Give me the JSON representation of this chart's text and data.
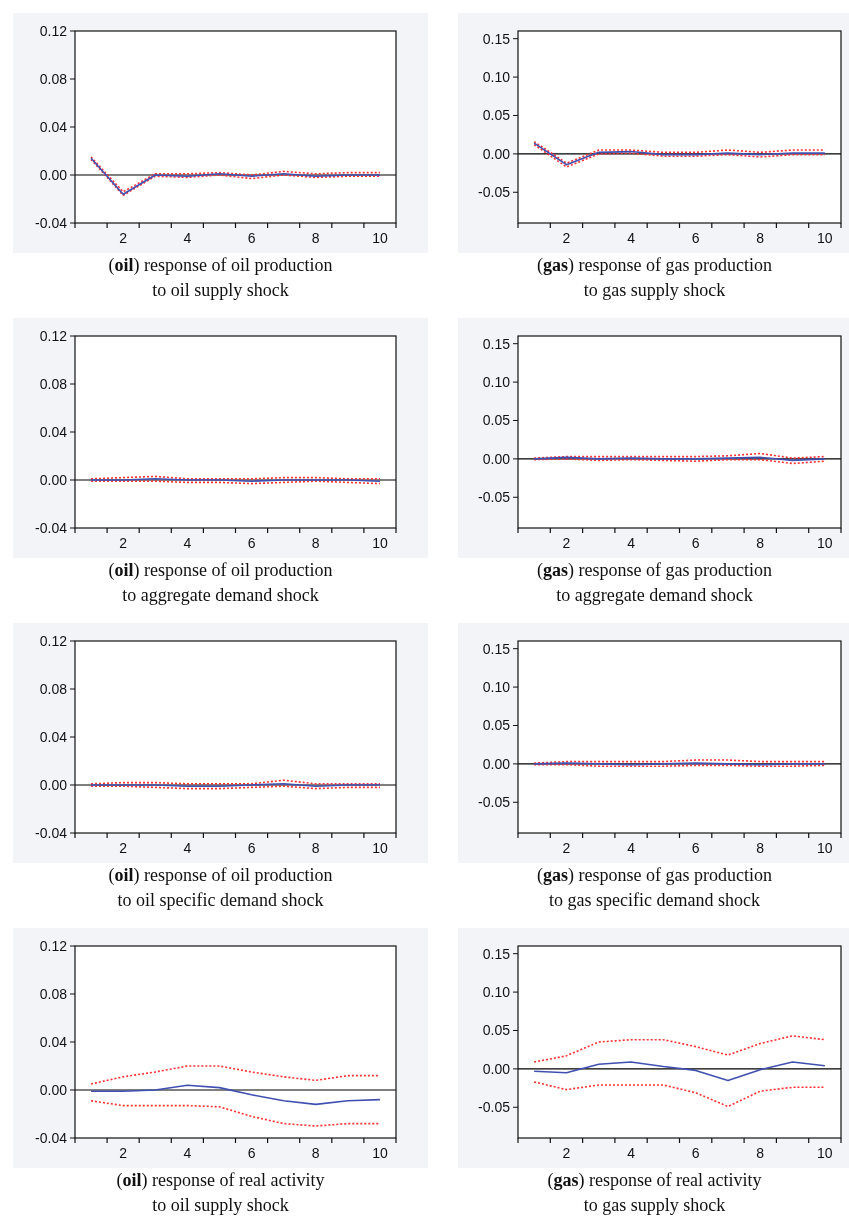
{
  "chart_data": [
    {
      "type": "line",
      "title": "(oil) response of oil production to oil supply shock",
      "x": [
        1,
        2,
        3,
        4,
        5,
        6,
        7,
        8,
        9,
        10
      ],
      "xlim": [
        0.5,
        10.5
      ],
      "xticks": [
        {
          "value": 0.5,
          "label": null
        },
        {
          "value": 1.5,
          "label": null
        },
        {
          "value": 2,
          "label": "2"
        },
        {
          "value": 2.5,
          "label": null
        },
        {
          "value": 3.5,
          "label": null
        },
        {
          "value": 4,
          "label": "4"
        },
        {
          "value": 4.5,
          "label": null
        },
        {
          "value": 5.5,
          "label": null
        },
        {
          "value": 6,
          "label": "6"
        },
        {
          "value": 6.5,
          "label": null
        },
        {
          "value": 7.5,
          "label": null
        },
        {
          "value": 8,
          "label": "8"
        },
        {
          "value": 8.5,
          "label": null
        },
        {
          "value": 9.5,
          "label": null
        },
        {
          "value": 10,
          "label": "10"
        },
        {
          "value": 10.5,
          "label": null
        }
      ],
      "ylim": [
        -0.04,
        0.12
      ],
      "yticks": [
        {
          "value": -0.04,
          "label": "-0.04"
        },
        {
          "value": 0,
          "label": "0.00"
        },
        {
          "value": 0.04,
          "label": "0.04"
        },
        {
          "value": 0.08,
          "label": "0.08"
        },
        {
          "value": 0.12,
          "label": "0.12"
        }
      ],
      "ref_lines": [
        {
          "axis": "y",
          "value": 0,
          "color": "#000000"
        }
      ],
      "series": [
        {
          "color": "#ff3030",
          "line_style": "dotted",
          "values": [
            0.015,
            -0.014,
            0.001,
            0.001,
            0.002,
            0.0,
            0.003,
            0.001,
            0.002,
            0.002
          ]
        },
        {
          "color": "#ff3030",
          "line_style": "dotted",
          "values": [
            0.013,
            -0.017,
            -0.001,
            -0.002,
            0.0,
            -0.003,
            0.0,
            -0.002,
            -0.001,
            -0.001
          ]
        },
        {
          "color": "#4050b0",
          "line_style": "solid",
          "values": [
            0.014,
            -0.016,
            0.0,
            -0.001,
            0.001,
            -0.001,
            0.001,
            -0.001,
            0.0,
            0.0
          ]
        }
      ]
    },
    {
      "type": "line",
      "title": "(gas) response of gas production to gas supply shock",
      "x": [
        1,
        2,
        3,
        4,
        5,
        6,
        7,
        8,
        9,
        10
      ],
      "xlim": [
        0.5,
        10.5
      ],
      "xticks": [
        {
          "value": 0.5,
          "label": null
        },
        {
          "value": 1.5,
          "label": null
        },
        {
          "value": 2,
          "label": "2"
        },
        {
          "value": 2.5,
          "label": null
        },
        {
          "value": 3.5,
          "label": null
        },
        {
          "value": 4,
          "label": "4"
        },
        {
          "value": 4.5,
          "label": null
        },
        {
          "value": 5.5,
          "label": null
        },
        {
          "value": 6,
          "label": "6"
        },
        {
          "value": 6.5,
          "label": null
        },
        {
          "value": 7.5,
          "label": null
        },
        {
          "value": 8,
          "label": "8"
        },
        {
          "value": 8.5,
          "label": null
        },
        {
          "value": 9.5,
          "label": null
        },
        {
          "value": 10,
          "label": "10"
        },
        {
          "value": 10.5,
          "label": null
        }
      ],
      "ylim": [
        -0.09,
        0.16
      ],
      "yticks": [
        {
          "value": -0.05,
          "label": "-0.05"
        },
        {
          "value": 0,
          "label": "0.00"
        },
        {
          "value": 0.05,
          "label": "0.05"
        },
        {
          "value": 0.1,
          "label": "0.10"
        },
        {
          "value": 0.15,
          "label": "0.15"
        }
      ],
      "ref_lines": [
        {
          "axis": "y",
          "value": 0,
          "color": "#000000"
        }
      ],
      "series": [
        {
          "color": "#ff3030",
          "line_style": "dotted",
          "values": [
            0.016,
            -0.012,
            0.005,
            0.005,
            0.002,
            0.002,
            0.005,
            0.002,
            0.005,
            0.005
          ]
        },
        {
          "color": "#ff3030",
          "line_style": "dotted",
          "values": [
            0.012,
            -0.017,
            0.0,
            0.001,
            -0.003,
            -0.003,
            -0.001,
            -0.004,
            -0.001,
            -0.001
          ]
        },
        {
          "color": "#4050b0",
          "line_style": "solid",
          "values": [
            0.014,
            -0.014,
            0.002,
            0.003,
            -0.001,
            -0.001,
            0.001,
            -0.001,
            0.001,
            0.001
          ]
        }
      ]
    },
    {
      "type": "line",
      "title": "(oil) response of oil production to aggregate demand shock",
      "x": [
        1,
        2,
        3,
        4,
        5,
        6,
        7,
        8,
        9,
        10
      ],
      "xlim": [
        0.5,
        10.5
      ],
      "xticks": [
        {
          "value": 0.5,
          "label": null
        },
        {
          "value": 1.5,
          "label": null
        },
        {
          "value": 2,
          "label": "2"
        },
        {
          "value": 2.5,
          "label": null
        },
        {
          "value": 3.5,
          "label": null
        },
        {
          "value": 4,
          "label": "4"
        },
        {
          "value": 4.5,
          "label": null
        },
        {
          "value": 5.5,
          "label": null
        },
        {
          "value": 6,
          "label": "6"
        },
        {
          "value": 6.5,
          "label": null
        },
        {
          "value": 7.5,
          "label": null
        },
        {
          "value": 8,
          "label": "8"
        },
        {
          "value": 8.5,
          "label": null
        },
        {
          "value": 9.5,
          "label": null
        },
        {
          "value": 10,
          "label": "10"
        },
        {
          "value": 10.5,
          "label": null
        }
      ],
      "ylim": [
        -0.04,
        0.12
      ],
      "yticks": [
        {
          "value": -0.04,
          "label": "-0.04"
        },
        {
          "value": 0,
          "label": "0.00"
        },
        {
          "value": 0.04,
          "label": "0.04"
        },
        {
          "value": 0.08,
          "label": "0.08"
        },
        {
          "value": 0.12,
          "label": "0.12"
        }
      ],
      "ref_lines": [
        {
          "axis": "y",
          "value": 0,
          "color": "#000000"
        }
      ],
      "series": [
        {
          "color": "#ff3030",
          "line_style": "dotted",
          "values": [
            0.001,
            0.002,
            0.003,
            0.001,
            0.001,
            0.001,
            0.002,
            0.002,
            0.001,
            0.001
          ]
        },
        {
          "color": "#ff3030",
          "line_style": "dotted",
          "values": [
            -0.001,
            -0.001,
            -0.001,
            -0.002,
            -0.002,
            -0.003,
            -0.002,
            -0.001,
            -0.002,
            -0.003
          ]
        },
        {
          "color": "#4050b0",
          "line_style": "solid",
          "values": [
            0.0,
            0.0,
            0.001,
            0.0,
            0.0,
            -0.001,
            0.0,
            0.0,
            0.0,
            -0.001
          ]
        }
      ]
    },
    {
      "type": "line",
      "title": "(gas) response of gas production to aggregate demand shock",
      "x": [
        1,
        2,
        3,
        4,
        5,
        6,
        7,
        8,
        9,
        10
      ],
      "xlim": [
        0.5,
        10.5
      ],
      "xticks": [
        {
          "value": 0.5,
          "label": null
        },
        {
          "value": 1.5,
          "label": null
        },
        {
          "value": 2,
          "label": "2"
        },
        {
          "value": 2.5,
          "label": null
        },
        {
          "value": 3.5,
          "label": null
        },
        {
          "value": 4,
          "label": "4"
        },
        {
          "value": 4.5,
          "label": null
        },
        {
          "value": 5.5,
          "label": null
        },
        {
          "value": 6,
          "label": "6"
        },
        {
          "value": 6.5,
          "label": null
        },
        {
          "value": 7.5,
          "label": null
        },
        {
          "value": 8,
          "label": "8"
        },
        {
          "value": 8.5,
          "label": null
        },
        {
          "value": 9.5,
          "label": null
        },
        {
          "value": 10,
          "label": "10"
        },
        {
          "value": 10.5,
          "label": null
        }
      ],
      "ylim": [
        -0.09,
        0.16
      ],
      "yticks": [
        {
          "value": -0.05,
          "label": "-0.05"
        },
        {
          "value": 0,
          "label": "0.00"
        },
        {
          "value": 0.05,
          "label": "0.05"
        },
        {
          "value": 0.1,
          "label": "0.10"
        },
        {
          "value": 0.15,
          "label": "0.15"
        }
      ],
      "ref_lines": [
        {
          "axis": "y",
          "value": 0,
          "color": "#000000"
        }
      ],
      "series": [
        {
          "color": "#ff3030",
          "line_style": "dotted",
          "values": [
            0.001,
            0.003,
            0.003,
            0.003,
            0.003,
            0.003,
            0.004,
            0.007,
            0.001,
            0.003
          ]
        },
        {
          "color": "#ff3030",
          "line_style": "dotted",
          "values": [
            -0.001,
            0.0,
            -0.002,
            -0.001,
            -0.002,
            -0.003,
            -0.001,
            -0.001,
            -0.006,
            -0.003
          ]
        },
        {
          "color": "#4050b0",
          "line_style": "solid",
          "values": [
            0.0,
            0.002,
            0.0,
            0.001,
            0.0,
            0.0,
            0.001,
            0.002,
            -0.002,
            0.0
          ]
        }
      ]
    },
    {
      "type": "line",
      "title": "(oil) response of oil production to oil specific demand shock",
      "x": [
        1,
        2,
        3,
        4,
        5,
        6,
        7,
        8,
        9,
        10
      ],
      "xlim": [
        0.5,
        10.5
      ],
      "xticks": [
        {
          "value": 0.5,
          "label": null
        },
        {
          "value": 1.5,
          "label": null
        },
        {
          "value": 2,
          "label": "2"
        },
        {
          "value": 2.5,
          "label": null
        },
        {
          "value": 3.5,
          "label": null
        },
        {
          "value": 4,
          "label": "4"
        },
        {
          "value": 4.5,
          "label": null
        },
        {
          "value": 5.5,
          "label": null
        },
        {
          "value": 6,
          "label": "6"
        },
        {
          "value": 6.5,
          "label": null
        },
        {
          "value": 7.5,
          "label": null
        },
        {
          "value": 8,
          "label": "8"
        },
        {
          "value": 8.5,
          "label": null
        },
        {
          "value": 9.5,
          "label": null
        },
        {
          "value": 10,
          "label": "10"
        },
        {
          "value": 10.5,
          "label": null
        }
      ],
      "ylim": [
        -0.04,
        0.12
      ],
      "yticks": [
        {
          "value": -0.04,
          "label": "-0.04"
        },
        {
          "value": 0,
          "label": "0.00"
        },
        {
          "value": 0.04,
          "label": "0.04"
        },
        {
          "value": 0.08,
          "label": "0.08"
        },
        {
          "value": 0.12,
          "label": "0.12"
        }
      ],
      "ref_lines": [
        {
          "axis": "y",
          "value": 0,
          "color": "#000000"
        }
      ],
      "series": [
        {
          "color": "#ff3030",
          "line_style": "dotted",
          "values": [
            0.001,
            0.002,
            0.002,
            0.001,
            0.001,
            0.001,
            0.004,
            0.001,
            0.001,
            0.001
          ]
        },
        {
          "color": "#ff3030",
          "line_style": "dotted",
          "values": [
            -0.001,
            -0.001,
            -0.002,
            -0.003,
            -0.003,
            -0.002,
            -0.001,
            -0.003,
            -0.002,
            -0.002
          ]
        },
        {
          "color": "#4050b0",
          "line_style": "solid",
          "values": [
            0.0,
            0.0,
            0.0,
            -0.001,
            -0.001,
            0.0,
            0.001,
            -0.001,
            0.0,
            0.0
          ]
        }
      ]
    },
    {
      "type": "line",
      "title": "(gas) response of gas production to gas specific demand shock",
      "x": [
        1,
        2,
        3,
        4,
        5,
        6,
        7,
        8,
        9,
        10
      ],
      "xlim": [
        0.5,
        10.5
      ],
      "xticks": [
        {
          "value": 0.5,
          "label": null
        },
        {
          "value": 1.5,
          "label": null
        },
        {
          "value": 2,
          "label": "2"
        },
        {
          "value": 2.5,
          "label": null
        },
        {
          "value": 3.5,
          "label": null
        },
        {
          "value": 4,
          "label": "4"
        },
        {
          "value": 4.5,
          "label": null
        },
        {
          "value": 5.5,
          "label": null
        },
        {
          "value": 6,
          "label": "6"
        },
        {
          "value": 6.5,
          "label": null
        },
        {
          "value": 7.5,
          "label": null
        },
        {
          "value": 8,
          "label": "8"
        },
        {
          "value": 8.5,
          "label": null
        },
        {
          "value": 9.5,
          "label": null
        },
        {
          "value": 10,
          "label": "10"
        },
        {
          "value": 10.5,
          "label": null
        }
      ],
      "ylim": [
        -0.09,
        0.16
      ],
      "yticks": [
        {
          "value": -0.05,
          "label": "-0.05"
        },
        {
          "value": 0,
          "label": "0.00"
        },
        {
          "value": 0.05,
          "label": "0.05"
        },
        {
          "value": 0.1,
          "label": "0.10"
        },
        {
          "value": 0.15,
          "label": "0.15"
        }
      ],
      "ref_lines": [
        {
          "axis": "y",
          "value": 0,
          "color": "#000000"
        }
      ],
      "series": [
        {
          "color": "#ff3030",
          "line_style": "dotted",
          "values": [
            0.001,
            0.003,
            0.003,
            0.003,
            0.003,
            0.005,
            0.005,
            0.003,
            0.003,
            0.003
          ]
        },
        {
          "color": "#ff3030",
          "line_style": "dotted",
          "values": [
            -0.001,
            -0.001,
            -0.003,
            -0.003,
            -0.003,
            -0.002,
            -0.002,
            -0.003,
            -0.003,
            -0.002
          ]
        },
        {
          "color": "#4050b0",
          "line_style": "solid",
          "values": [
            0.0,
            0.001,
            0.0,
            -0.001,
            0.0,
            0.001,
            0.0,
            -0.001,
            0.0,
            0.0
          ]
        }
      ]
    },
    {
      "type": "line",
      "title": "(oil) response of real activity to oil supply shock",
      "x": [
        1,
        2,
        3,
        4,
        5,
        6,
        7,
        8,
        9,
        10
      ],
      "xlim": [
        0.5,
        10.5
      ],
      "xticks": [
        {
          "value": 0.5,
          "label": null
        },
        {
          "value": 1.5,
          "label": null
        },
        {
          "value": 2,
          "label": "2"
        },
        {
          "value": 2.5,
          "label": null
        },
        {
          "value": 3.5,
          "label": null
        },
        {
          "value": 4,
          "label": "4"
        },
        {
          "value": 4.5,
          "label": null
        },
        {
          "value": 5.5,
          "label": null
        },
        {
          "value": 6,
          "label": "6"
        },
        {
          "value": 6.5,
          "label": null
        },
        {
          "value": 7.5,
          "label": null
        },
        {
          "value": 8,
          "label": "8"
        },
        {
          "value": 8.5,
          "label": null
        },
        {
          "value": 9.5,
          "label": null
        },
        {
          "value": 10,
          "label": "10"
        },
        {
          "value": 10.5,
          "label": null
        }
      ],
      "ylim": [
        -0.04,
        0.12
      ],
      "yticks": [
        {
          "value": -0.04,
          "label": "-0.04"
        },
        {
          "value": 0,
          "label": "0.00"
        },
        {
          "value": 0.04,
          "label": "0.04"
        },
        {
          "value": 0.08,
          "label": "0.08"
        },
        {
          "value": 0.12,
          "label": "0.12"
        }
      ],
      "ref_lines": [
        {
          "axis": "y",
          "value": 0,
          "color": "#000000"
        }
      ],
      "series": [
        {
          "color": "#ff3030",
          "line_style": "dotted",
          "values": [
            0.005,
            0.011,
            0.015,
            0.02,
            0.02,
            0.015,
            0.011,
            0.008,
            0.012,
            0.012
          ]
        },
        {
          "color": "#ff3030",
          "line_style": "dotted",
          "values": [
            -0.009,
            -0.013,
            -0.013,
            -0.013,
            -0.014,
            -0.022,
            -0.028,
            -0.03,
            -0.028,
            -0.028
          ]
        },
        {
          "color": "#4050b0",
          "line_style": "solid",
          "values": [
            -0.001,
            -0.001,
            0.0,
            0.004,
            0.002,
            -0.004,
            -0.009,
            -0.012,
            -0.009,
            -0.008
          ]
        }
      ]
    },
    {
      "type": "line",
      "title": "(gas) response of real activity to gas supply shock",
      "x": [
        1,
        2,
        3,
        4,
        5,
        6,
        7,
        8,
        9,
        10
      ],
      "xlim": [
        0.5,
        10.5
      ],
      "xticks": [
        {
          "value": 0.5,
          "label": null
        },
        {
          "value": 1.5,
          "label": null
        },
        {
          "value": 2,
          "label": "2"
        },
        {
          "value": 2.5,
          "label": null
        },
        {
          "value": 3.5,
          "label": null
        },
        {
          "value": 4,
          "label": "4"
        },
        {
          "value": 4.5,
          "label": null
        },
        {
          "value": 5.5,
          "label": null
        },
        {
          "value": 6,
          "label": "6"
        },
        {
          "value": 6.5,
          "label": null
        },
        {
          "value": 7.5,
          "label": null
        },
        {
          "value": 8,
          "label": "8"
        },
        {
          "value": 8.5,
          "label": null
        },
        {
          "value": 9.5,
          "label": null
        },
        {
          "value": 10,
          "label": "10"
        },
        {
          "value": 10.5,
          "label": null
        }
      ],
      "ylim": [
        -0.09,
        0.16
      ],
      "yticks": [
        {
          "value": -0.05,
          "label": "-0.05"
        },
        {
          "value": 0,
          "label": "0.00"
        },
        {
          "value": 0.05,
          "label": "0.05"
        },
        {
          "value": 0.1,
          "label": "0.10"
        },
        {
          "value": 0.15,
          "label": "0.15"
        }
      ],
      "ref_lines": [
        {
          "axis": "y",
          "value": 0,
          "color": "#000000"
        }
      ],
      "series": [
        {
          "color": "#ff3030",
          "line_style": "dotted",
          "values": [
            0.009,
            0.017,
            0.035,
            0.038,
            0.038,
            0.029,
            0.018,
            0.033,
            0.043,
            0.038
          ]
        },
        {
          "color": "#ff3030",
          "line_style": "dotted",
          "values": [
            -0.017,
            -0.027,
            -0.021,
            -0.021,
            -0.021,
            -0.031,
            -0.049,
            -0.029,
            -0.024,
            -0.024
          ]
        },
        {
          "color": "#4050b0",
          "line_style": "solid",
          "values": [
            -0.003,
            -0.005,
            0.006,
            0.009,
            0.003,
            -0.002,
            -0.015,
            -0.001,
            0.009,
            0.004
          ]
        }
      ]
    }
  ]
}
